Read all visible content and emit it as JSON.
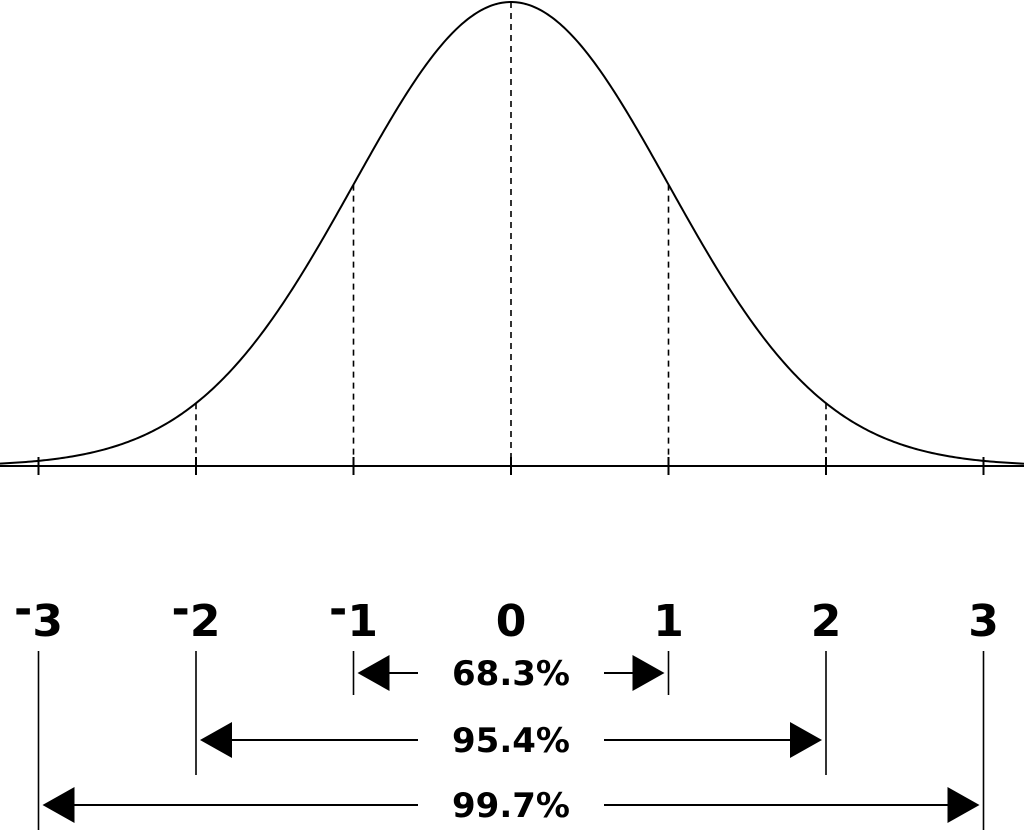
{
  "colors": {
    "ink": "#000000",
    "background": "#ffffff"
  },
  "axis": {
    "ticks": [
      -3,
      -2,
      -1,
      0,
      1,
      2,
      3
    ],
    "tick_labels": [
      {
        "prefix": "-",
        "digit": "3"
      },
      {
        "prefix": "-",
        "digit": "2"
      },
      {
        "prefix": "-",
        "digit": "1"
      },
      {
        "prefix": "",
        "digit": "0"
      },
      {
        "prefix": "",
        "digit": "1"
      },
      {
        "prefix": "",
        "digit": "2"
      },
      {
        "prefix": "",
        "digit": "3"
      }
    ]
  },
  "intervals": [
    {
      "from": -1,
      "to": 1,
      "label": "68.3%"
    },
    {
      "from": -2,
      "to": 2,
      "label": "95.4%"
    },
    {
      "from": -3,
      "to": 3,
      "label": "99.7%"
    }
  ]
}
